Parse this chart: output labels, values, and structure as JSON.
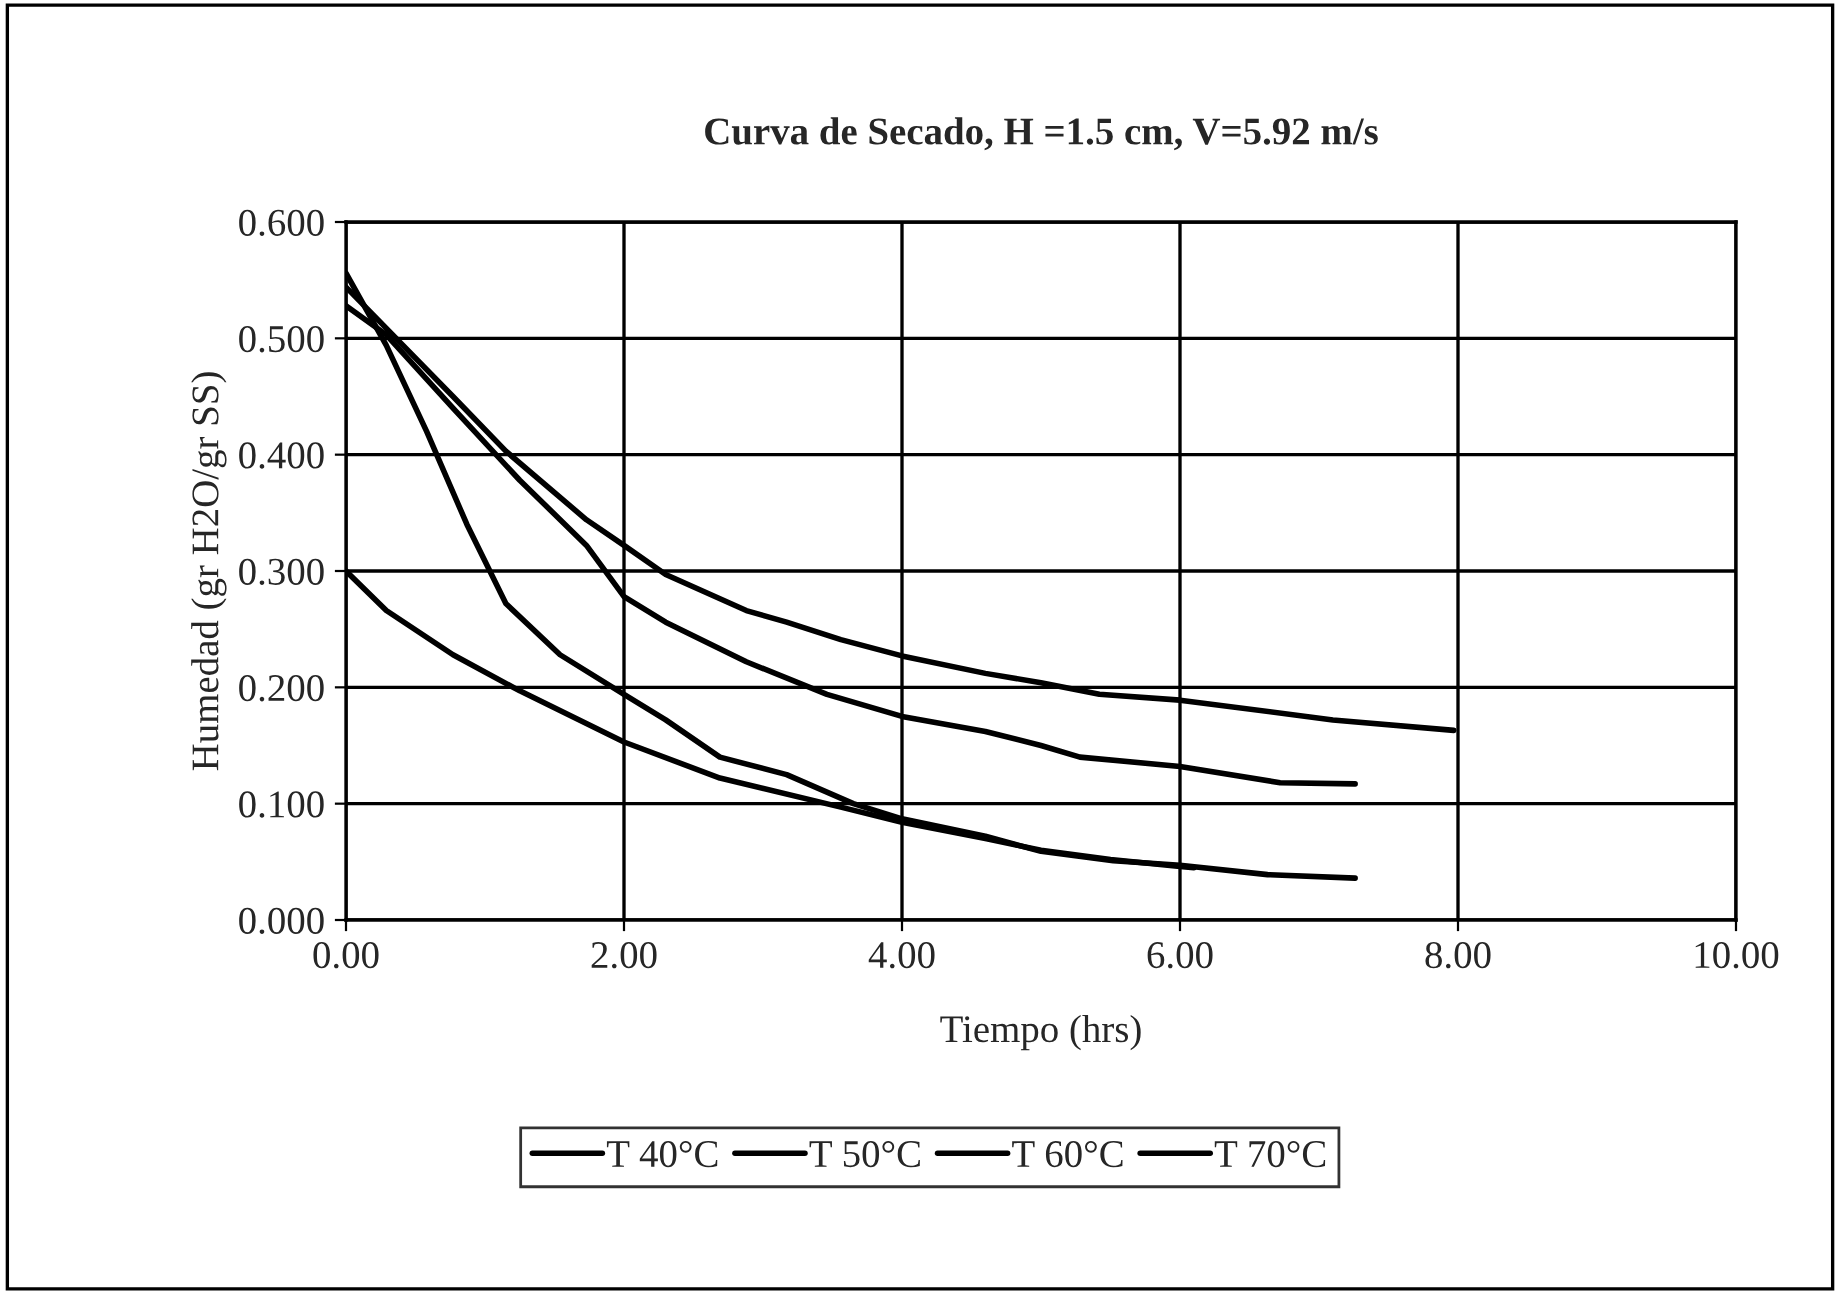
{
  "chart_data": {
    "type": "line",
    "title": "Curva de Secado, H =1.5 cm, V=5.92 m/s",
    "xlabel": "Tiempo (hrs)",
    "ylabel": "Humedad (gr H2O/gr SS)",
    "xlim": [
      0,
      10
    ],
    "xticks": [
      {
        "value": 0,
        "label": "0.00"
      },
      {
        "value": 2,
        "label": "2.00"
      },
      {
        "value": 4,
        "label": "4.00"
      },
      {
        "value": 6,
        "label": "6.00"
      },
      {
        "value": 8,
        "label": "8.00"
      },
      {
        "value": 10,
        "label": "10.00"
      }
    ],
    "ylim": [
      0,
      0.6
    ],
    "yticks": [
      {
        "value": 0,
        "label": "0.000"
      },
      {
        "value": 0.1,
        "label": "0.100"
      },
      {
        "value": 0.2,
        "label": "0.200"
      },
      {
        "value": 0.3,
        "label": "0.300"
      },
      {
        "value": 0.4,
        "label": "0.400"
      },
      {
        "value": 0.5,
        "label": "0.500"
      },
      {
        "value": 0.6,
        "label": "0.600"
      }
    ],
    "grid": true,
    "legend": "bottom",
    "marker": "none",
    "line_style": "solid",
    "series": [
      {
        "name": "T 40°C",
        "color": "#000000",
        "x": [
          0,
          0.77,
          1.15,
          1.73,
          2.0,
          2.3,
          2.88,
          3.17,
          3.56,
          4.0,
          4.6,
          5.0,
          5.42,
          6.0,
          7.1,
          7.97
        ],
        "values": [
          0.544,
          0.45,
          0.403,
          0.344,
          0.322,
          0.297,
          0.266,
          0.256,
          0.241,
          0.227,
          0.212,
          0.204,
          0.194,
          0.189,
          0.172,
          0.163
        ]
      },
      {
        "name": "T 50°C",
        "color": "#000000",
        "x": [
          0,
          0.29,
          0.77,
          1.25,
          1.73,
          2.0,
          2.3,
          2.88,
          3.46,
          4.0,
          4.6,
          5.0,
          5.28,
          6.0,
          6.72,
          7.26
        ],
        "values": [
          0.528,
          0.503,
          0.44,
          0.378,
          0.322,
          0.278,
          0.256,
          0.222,
          0.194,
          0.175,
          0.162,
          0.15,
          0.14,
          0.132,
          0.118,
          0.117
        ]
      },
      {
        "name": "T 60°C",
        "color": "#000000",
        "x": [
          0,
          0.29,
          0.58,
          0.87,
          1.15,
          1.54,
          2.0,
          2.3,
          2.69,
          3.17,
          3.65,
          4.0,
          4.6,
          5.0,
          5.52,
          6.0,
          6.63,
          7.26
        ],
        "values": [
          0.556,
          0.494,
          0.42,
          0.34,
          0.272,
          0.228,
          0.194,
          0.172,
          0.14,
          0.125,
          0.1,
          0.087,
          0.072,
          0.059,
          0.051,
          0.047,
          0.039,
          0.036
        ]
      },
      {
        "name": "T 70°C",
        "color": "#000000",
        "x": [
          0,
          0.29,
          0.77,
          1.25,
          2.0,
          2.69,
          3.56,
          4.0,
          4.6,
          5.0,
          5.5,
          6.0,
          6.1
        ],
        "values": [
          0.3,
          0.266,
          0.228,
          0.197,
          0.153,
          0.122,
          0.097,
          0.084,
          0.07,
          0.06,
          0.052,
          0.046,
          0.045
        ]
      }
    ]
  }
}
